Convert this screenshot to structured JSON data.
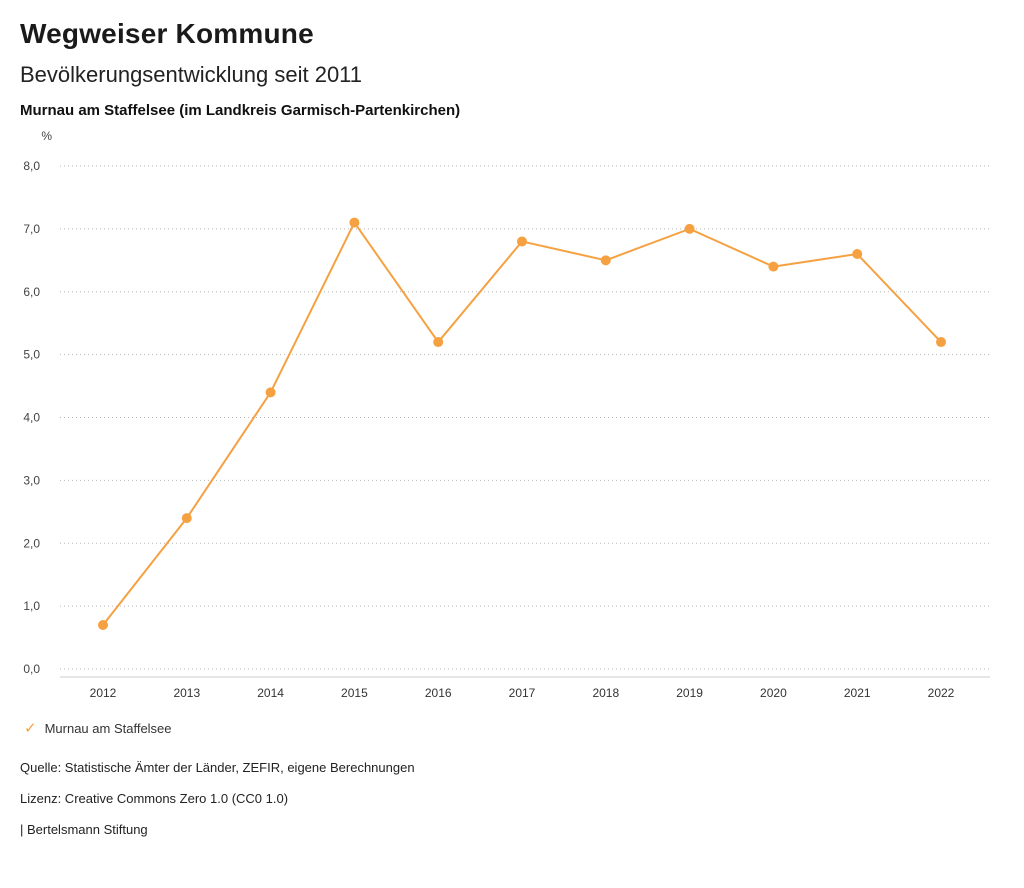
{
  "header": {
    "title": "Wegweiser Kommune",
    "subtitle": "Bevölkerungsentwicklung seit 2011",
    "location": "Murnau am Staffelsee (im Landkreis Garmisch-Partenkirchen)"
  },
  "chart_data": {
    "type": "line",
    "title": "Bevölkerungsentwicklung seit 2011",
    "unit_label": "%",
    "categories": [
      "2012",
      "2013",
      "2014",
      "2015",
      "2016",
      "2017",
      "2018",
      "2019",
      "2020",
      "2021",
      "2022"
    ],
    "series": [
      {
        "name": "Murnau am Staffelsee",
        "color": "#F5A142",
        "values": [
          0.7,
          2.4,
          4.4,
          7.1,
          5.2,
          6.8,
          6.5,
          7.0,
          6.4,
          6.6,
          5.2
        ]
      }
    ],
    "ylim": [
      0,
      8
    ],
    "ytick_step": 1,
    "ytick_labels": [
      "0,0",
      "1,0",
      "2,0",
      "3,0",
      "4,0",
      "5,0",
      "6,0",
      "7,0",
      "8,0"
    ],
    "grid": "dotted-horizontal",
    "legend_position": "bottom-left"
  },
  "legend": {
    "items": [
      {
        "label": "Murnau am Staffelsee",
        "color": "#F5A142",
        "marker": "check"
      }
    ]
  },
  "footer": {
    "source": "Quelle: Statistische Ämter der Länder, ZEFIR, eigene Berechnungen",
    "license": "Lizenz: Creative Commons Zero 1.0 (CC0 1.0)",
    "attribution": "| Bertelsmann Stiftung"
  }
}
